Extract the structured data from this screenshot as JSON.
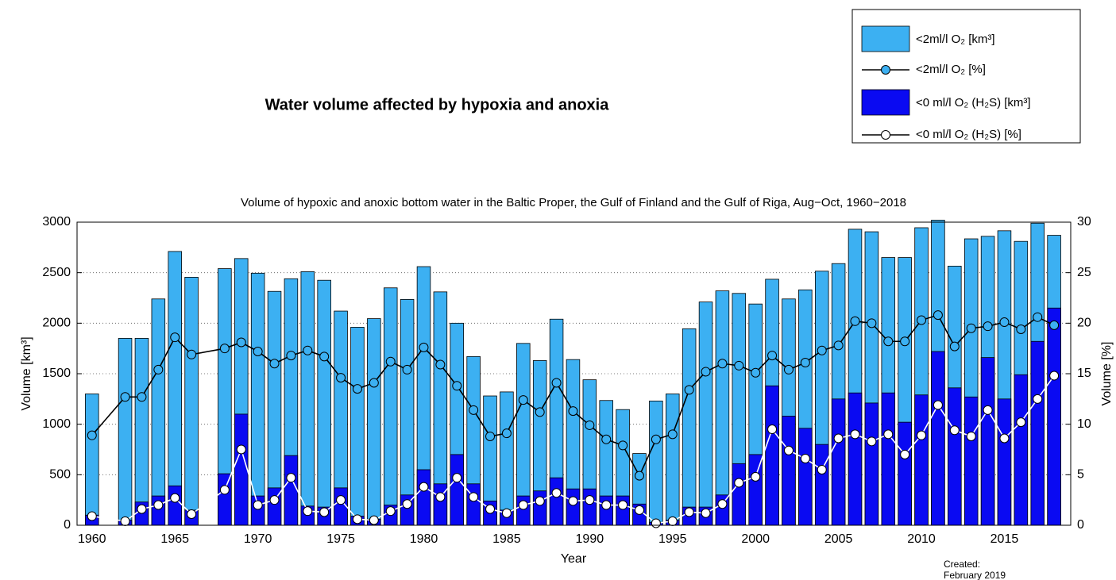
{
  "chart_data": {
    "type": "bar",
    "header": "Water volume affected by hypoxia and anoxia",
    "title": "Volume of hypoxic and anoxic bottom water in the Baltic Proper, the Gulf of Finland and the Gulf of Riga, Aug−Oct, 1960−2018",
    "xlabel": "Year",
    "ylabel": "Volume [km³]",
    "y2label": "Volume [%]",
    "annotations": [
      "Created:",
      "February 2019"
    ],
    "x": [
      1960,
      1962,
      1963,
      1964,
      1965,
      1966,
      1968,
      1969,
      1970,
      1971,
      1972,
      1973,
      1974,
      1975,
      1976,
      1977,
      1978,
      1979,
      1980,
      1981,
      1982,
      1983,
      1984,
      1985,
      1986,
      1987,
      1988,
      1989,
      1990,
      1991,
      1992,
      1993,
      1994,
      1995,
      1996,
      1997,
      1998,
      1999,
      2000,
      2001,
      2002,
      2003,
      2004,
      2005,
      2006,
      2007,
      2008,
      2009,
      2010,
      2011,
      2012,
      2013,
      2014,
      2015,
      2016,
      2017,
      2018
    ],
    "series": [
      {
        "name": "<2ml/l O₂ [km³]",
        "kind": "bar",
        "color": "#3cb0f2",
        "values": [
          1300,
          1850,
          1850,
          2240,
          2710,
          2455,
          2540,
          2640,
          2495,
          2315,
          2440,
          2510,
          2425,
          2120,
          1960,
          2045,
          2350,
          2235,
          2560,
          2310,
          2000,
          1670,
          1280,
          1320,
          1800,
          1630,
          2040,
          1640,
          1440,
          1235,
          1145,
          710,
          1230,
          1300,
          1945,
          2210,
          2320,
          2295,
          2190,
          2435,
          2240,
          2330,
          2515,
          2590,
          2930,
          2905,
          2650,
          2650,
          2945,
          3020,
          2565,
          2835,
          2860,
          2915,
          2810,
          2990,
          2870
        ]
      },
      {
        "name": "<2ml/l O₂ [%]",
        "kind": "line",
        "axis": "y2",
        "color": "#000000",
        "marker_color": "#3cb0f2",
        "values": [
          8.9,
          12.7,
          12.7,
          15.4,
          18.6,
          16.9,
          17.5,
          18.1,
          17.2,
          16.0,
          16.8,
          17.3,
          16.7,
          14.6,
          13.5,
          14.1,
          16.2,
          15.4,
          17.6,
          15.9,
          13.8,
          11.4,
          8.8,
          9.1,
          12.4,
          11.2,
          14.1,
          11.3,
          9.9,
          8.5,
          7.9,
          4.9,
          8.5,
          9.0,
          13.4,
          15.2,
          16.0,
          15.8,
          15.1,
          16.8,
          15.4,
          16.1,
          17.3,
          17.8,
          20.2,
          20.0,
          18.2,
          18.2,
          20.3,
          20.8,
          17.7,
          19.5,
          19.7,
          20.1,
          19.4,
          20.6,
          19.8
        ]
      },
      {
        "name": "<0 ml/l O₂ (H₂S) [km³]",
        "kind": "bar",
        "color": "#0a0af2",
        "values": [
          100,
          50,
          230,
          290,
          390,
          150,
          510,
          1100,
          290,
          370,
          690,
          190,
          180,
          370,
          90,
          60,
          200,
          300,
          550,
          410,
          700,
          410,
          240,
          150,
          290,
          340,
          470,
          360,
          360,
          290,
          290,
          210,
          30,
          50,
          180,
          180,
          300,
          610,
          700,
          1380,
          1080,
          960,
          800,
          1250,
          1310,
          1210,
          1310,
          1020,
          1290,
          1720,
          1360,
          1270,
          1660,
          1250,
          1490,
          1820,
          2150
        ]
      },
      {
        "name": "<0 ml/l O₂ (H₂S) [%]",
        "kind": "line",
        "axis": "y2",
        "color": "#ffffff",
        "marker_color": "#ffffff",
        "values": [
          0.9,
          0.4,
          1.6,
          2.0,
          2.7,
          1.1,
          3.5,
          7.5,
          2.0,
          2.5,
          4.7,
          1.4,
          1.3,
          2.5,
          0.6,
          0.5,
          1.4,
          2.1,
          3.8,
          2.8,
          4.7,
          2.8,
          1.6,
          1.2,
          2.0,
          2.4,
          3.2,
          2.4,
          2.5,
          2.0,
          2.0,
          1.5,
          0.2,
          0.4,
          1.3,
          1.2,
          2.1,
          4.2,
          4.8,
          9.5,
          7.4,
          6.6,
          5.5,
          8.6,
          9.0,
          8.3,
          9.0,
          7.0,
          8.9,
          11.9,
          9.4,
          8.8,
          11.4,
          8.6,
          10.2,
          12.5,
          14.8
        ]
      }
    ],
    "xlim": [
      1959.1,
      2019
    ],
    "xticks": [
      1960,
      1965,
      1970,
      1975,
      1980,
      1985,
      1990,
      1995,
      2000,
      2005,
      2010,
      2015
    ],
    "ylim": [
      0,
      3000
    ],
    "yticks": [
      0,
      500,
      1000,
      1500,
      2000,
      2500,
      3000
    ],
    "y2lim": [
      0,
      30
    ],
    "y2ticks": [
      0,
      5,
      10,
      15,
      20,
      25,
      30
    ],
    "grid": true,
    "legend": "top-right"
  }
}
